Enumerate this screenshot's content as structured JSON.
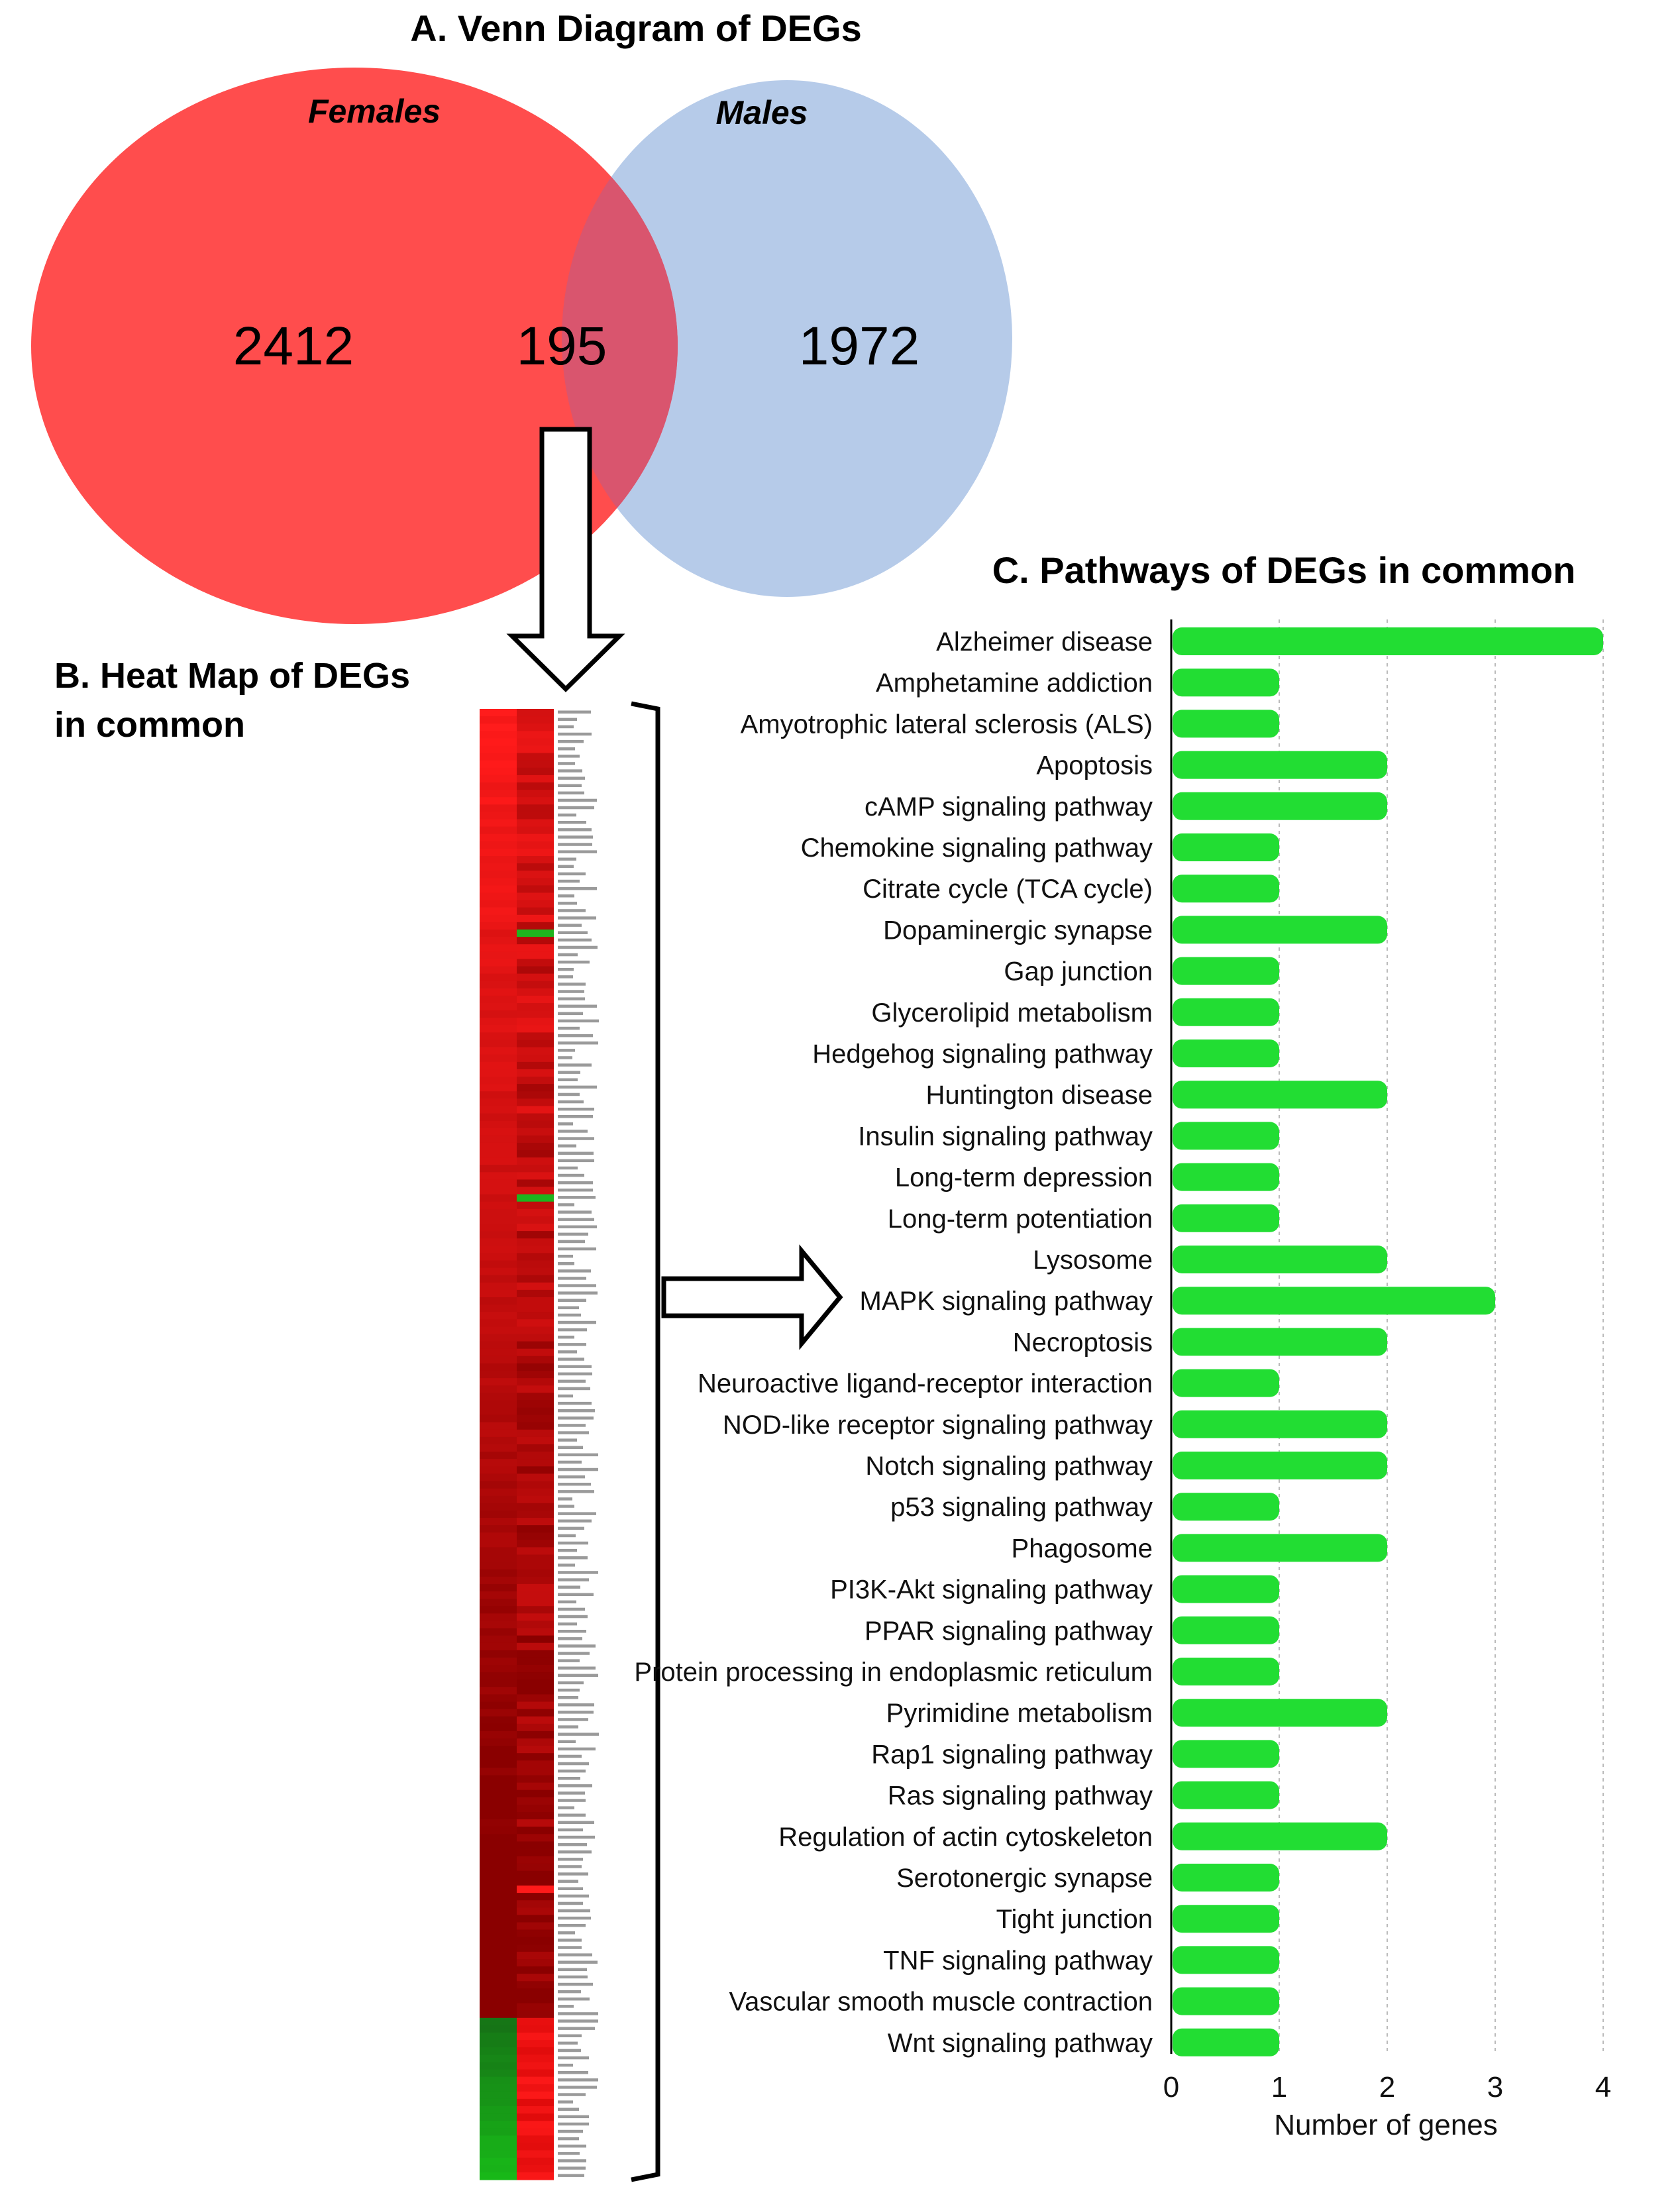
{
  "panel_a": {
    "title": "A. Venn Diagram of DEGs",
    "left_set_label": "Females",
    "right_set_label": "Males",
    "left_only_count": "2412",
    "overlap_count": "195",
    "right_only_count": "1972",
    "colors": {
      "females": "#ff4d4d",
      "males": "#b6cbe9",
      "overlap": "#d9556e"
    }
  },
  "panel_b": {
    "title_line1": "B. Heat Map of DEGs",
    "title_line2": "in common",
    "colors": {
      "up": "#ff1a1a",
      "mid": "#8a0000",
      "down": "#18c018"
    }
  },
  "chart_data": {
    "type": "bar",
    "orientation": "horizontal",
    "title": "C. Pathways of DEGs in common",
    "xlabel": "Number of genes",
    "ylabel": "",
    "xlim": [
      0,
      4
    ],
    "xticks": [
      "0",
      "1",
      "2",
      "3",
      "4"
    ],
    "grid": true,
    "bar_color": "#22dd33",
    "categories": [
      "Alzheimer disease",
      "Amphetamine addiction",
      "Amyotrophic lateral sclerosis (ALS)",
      "Apoptosis",
      "cAMP signaling pathway",
      "Chemokine signaling pathway",
      "Citrate cycle (TCA cycle)",
      "Dopaminergic synapse",
      "Gap junction",
      "Glycerolipid metabolism",
      "Hedgehog signaling pathway",
      "Huntington disease",
      "Insulin signaling pathway",
      "Long-term depression",
      "Long-term potentiation",
      "Lysosome",
      "MAPK signaling pathway",
      "Necroptosis",
      "Neuroactive ligand-receptor interaction",
      "NOD-like receptor signaling pathway",
      "Notch signaling pathway",
      "p53 signaling pathway",
      "Phagosome",
      "PI3K-Akt signaling pathway",
      "PPAR signaling pathway",
      "Protein processing in endoplasmic reticulum",
      "Pyrimidine metabolism",
      "Rap1 signaling pathway",
      "Ras signaling pathway",
      "Regulation of actin cytoskeleton",
      "Serotonergic synapse",
      "Tight junction",
      "TNF signaling pathway",
      "Vascular smooth muscle contraction",
      "Wnt signaling pathway"
    ],
    "values": [
      4,
      1,
      1,
      2,
      2,
      1,
      1,
      2,
      1,
      1,
      1,
      2,
      1,
      1,
      1,
      2,
      3,
      2,
      1,
      2,
      2,
      1,
      2,
      1,
      1,
      1,
      2,
      1,
      1,
      2,
      1,
      1,
      1,
      1,
      1
    ]
  }
}
